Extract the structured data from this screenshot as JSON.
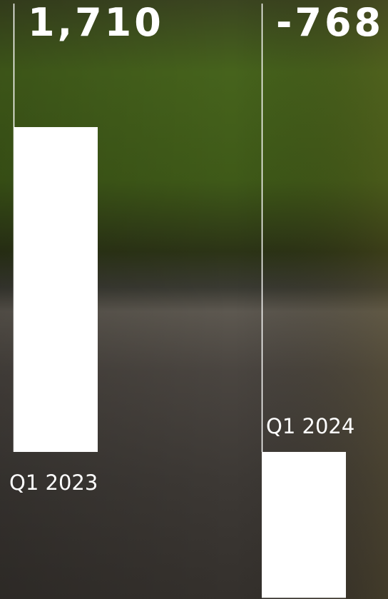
{
  "chart_data": {
    "type": "bar",
    "categories": [
      "Q1 2023",
      "Q1 2024"
    ],
    "values": [
      1710,
      -768
    ],
    "value_labels": [
      "1,710",
      "-768"
    ],
    "color": "#ffffff"
  }
}
